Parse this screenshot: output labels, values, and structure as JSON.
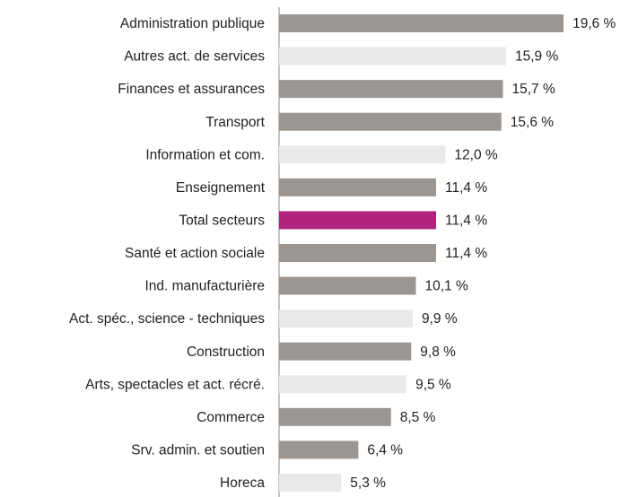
{
  "chart_data": {
    "type": "barh",
    "categories": [
      "Administration publique",
      "Autres act. de services",
      "Finances et assurances",
      "Transport",
      "Information et com.",
      "Enseignement",
      "Total secteurs",
      "Santé et action sociale",
      "Ind. manufacturière",
      "Act. spéc., science - techniques",
      "Construction",
      "Arts, spectacles et act. récré.",
      "Commerce",
      "Srv. admin. et soutien",
      "Horeca"
    ],
    "values": [
      19.6,
      15.9,
      15.7,
      15.6,
      12.0,
      11.4,
      11.4,
      11.4,
      10.1,
      9.9,
      9.8,
      9.5,
      8.5,
      6.4,
      5.3
    ],
    "value_labels": [
      "19,6 %",
      "15,9 %",
      "15,7 %",
      "15,6 %",
      "12,0 %",
      "11,4 %",
      "11,4 %",
      "11,4 %",
      "10,1 %",
      "9,9 %",
      "9,8 %",
      "9,5 %",
      "8,5 %",
      "6,4 %",
      "5,3 %"
    ],
    "colors": [
      "#9b9691",
      "#e9e9e7",
      "#9b9691",
      "#9b9691",
      "#e9e9e7",
      "#9b9691",
      "#b0237f",
      "#9b9691",
      "#9b9691",
      "#e9e9e7",
      "#9b9691",
      "#e9e9e7",
      "#9b9691",
      "#9b9691",
      "#e9e9e7"
    ],
    "xlim": [
      1.3,
      23
    ]
  }
}
